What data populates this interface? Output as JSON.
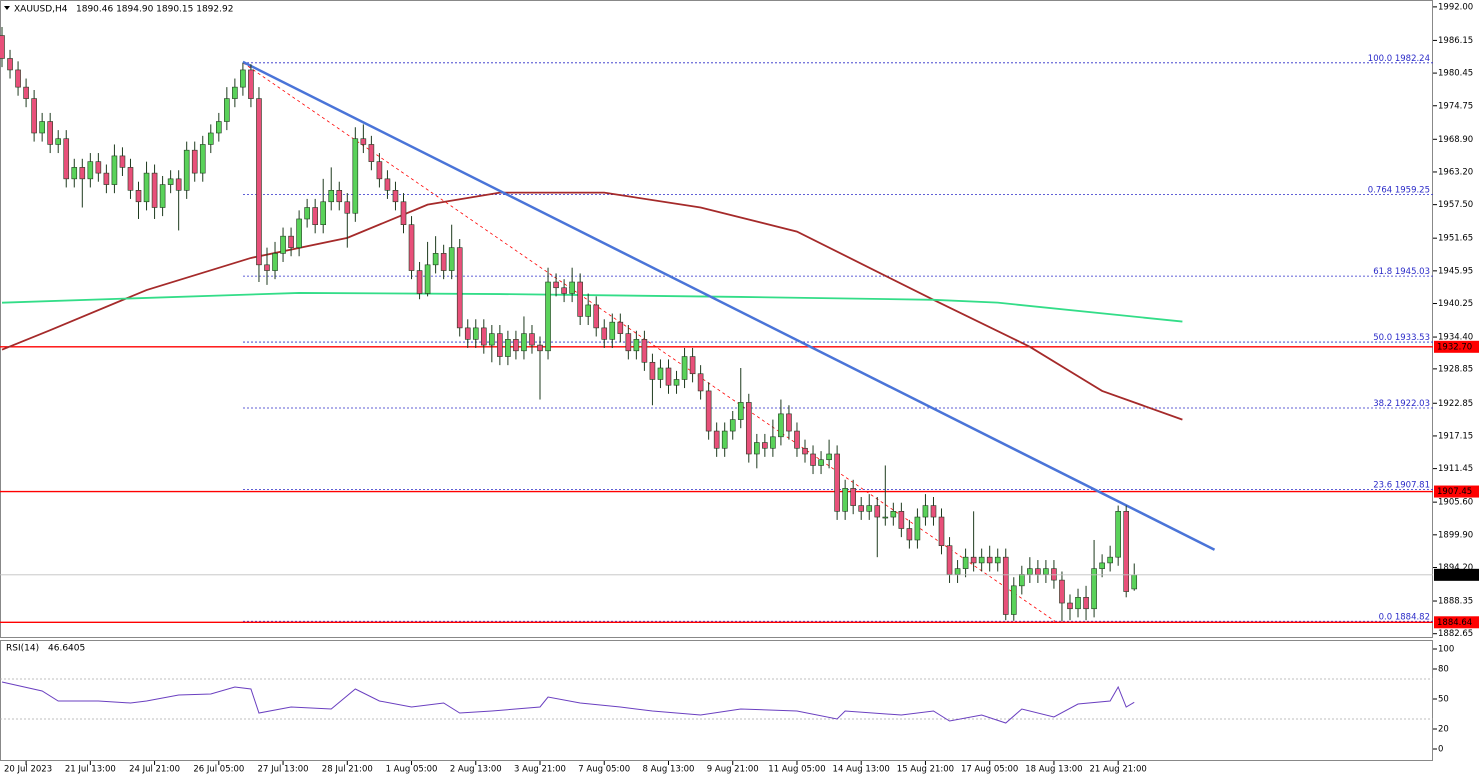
{
  "chart_data": {
    "type": "candlestick",
    "symbol": "XAUUSD,H4",
    "quote": "1890.46 1894.90 1890.15 1892.92",
    "categories": [
      null,
      null,
      null,
      "20 Jul 2023",
      null,
      null,
      null,
      null,
      null,
      null,
      null,
      "21 Jul 13:00",
      null,
      null,
      null,
      null,
      null,
      null,
      null,
      "24 Jul 21:00",
      null,
      null,
      null,
      null,
      null,
      null,
      null,
      "26 Jul 05:00",
      null,
      null,
      null,
      null,
      null,
      null,
      null,
      "27 Jul 13:00",
      null,
      null,
      null,
      null,
      null,
      null,
      null,
      "28 Jul 21:00",
      null,
      null,
      null,
      null,
      null,
      null,
      null,
      "1 Aug 05:00",
      null,
      null,
      null,
      null,
      null,
      null,
      null,
      "2 Aug 13:00",
      null,
      null,
      null,
      null,
      null,
      null,
      null,
      "3 Aug 21:00",
      null,
      null,
      null,
      null,
      null,
      null,
      null,
      "7 Aug 05:00",
      null,
      null,
      null,
      null,
      null,
      null,
      null,
      "8 Aug 13:00",
      null,
      null,
      null,
      null,
      null,
      null,
      null,
      "9 Aug 21:00",
      null,
      null,
      null,
      null,
      null,
      null,
      null,
      "11 Aug 05:00",
      null,
      null,
      null,
      null,
      null,
      null,
      null,
      "14 Aug 13:00",
      null,
      null,
      null,
      null,
      null,
      null,
      null,
      "15 Aug 21:00",
      null,
      null,
      null,
      null,
      null,
      null,
      null,
      "17 Aug 05:00",
      null,
      null,
      null,
      null,
      null,
      null,
      null,
      "18 Aug 13:00",
      null,
      null,
      null,
      null,
      null,
      null,
      null,
      "21 Aug 21:00",
      null,
      null
    ],
    "open": [
      1987,
      1983,
      1981,
      1978,
      1976,
      1970,
      1972,
      1968,
      1969,
      1962,
      1964,
      1962,
      1965,
      1963,
      1961,
      1966,
      1964,
      1960,
      1958,
      1963,
      1957,
      1961,
      1962,
      1960,
      1967,
      1963,
      1968,
      1970,
      1972,
      1976,
      1978,
      1981,
      1976,
      1947,
      1946,
      1949,
      1952,
      1950,
      1955,
      1957,
      1954,
      1958,
      1960,
      1958,
      1956,
      1969,
      1968,
      1965,
      1962,
      1960,
      1958,
      1954,
      1946,
      1942,
      1947,
      1949,
      1946,
      1950,
      1936,
      1934,
      1936,
      1933,
      1935,
      1931,
      1934,
      1932,
      1935,
      1933,
      1932,
      1944,
      1943,
      1942,
      1944,
      1938,
      1940,
      1936,
      1934,
      1937,
      1935,
      1932,
      1934,
      1930,
      1927,
      1929,
      1926,
      1927,
      1931,
      1928,
      1925,
      1918,
      1915,
      1918,
      1920,
      1923,
      1914,
      1916,
      1915,
      1917,
      1921,
      1918,
      1915,
      1914,
      1912,
      1913,
      1914,
      1904,
      1908,
      1905,
      1904,
      1905,
      1903,
      1903,
      1904,
      1901,
      1899,
      1903,
      1905,
      1903,
      1898,
      1893,
      1894,
      1896,
      1895,
      1896,
      1895,
      1896,
      1886,
      1891,
      1893,
      1894,
      1893,
      1894,
      1892,
      1888,
      1887,
      1889,
      1887,
      1894,
      1895,
      1896,
      1904,
      1890.46
    ],
    "high": [
      1988.5,
      1984.5,
      1982.5,
      1979.5,
      1977.5,
      1973.5,
      1973.5,
      1970.5,
      1970.5,
      1965.5,
      1965.5,
      1966.5,
      1966.5,
      1964.5,
      1968,
      1967.5,
      1965.5,
      1961.5,
      1965,
      1964.5,
      1962.5,
      1963.5,
      1963.5,
      1968.5,
      1968.5,
      1969.5,
      1971.5,
      1973.5,
      1978,
      1979.5,
      1982.24,
      1982,
      1978,
      1950,
      1951,
      1953.5,
      1953.5,
      1956.5,
      1958.5,
      1958.5,
      1962,
      1964,
      1961.5,
      1959.5,
      1971,
      1971.5,
      1969.5,
      1966.5,
      1963.5,
      1961.5,
      1959.5,
      1955.5,
      1947.5,
      1951,
      1952,
      1950.5,
      1954,
      1951.5,
      1937.5,
      1937.5,
      1937.5,
      1936.5,
      1936.5,
      1935.5,
      1935.5,
      1938,
      1936.5,
      1934.5,
      1946.5,
      1945.5,
      1944.5,
      1946.5,
      1945.5,
      1942,
      1941.5,
      1937.5,
      1938.5,
      1938.5,
      1936.5,
      1935.5,
      1935.5,
      1931.5,
      1930.5,
      1930.5,
      1928.5,
      1932.5,
      1932.5,
      1929.5,
      1926.5,
      1919.5,
      1919.5,
      1921.5,
      1929,
      1924.5,
      1917.5,
      1917.5,
      1920,
      1923.5,
      1922.5,
      1919.5,
      1916.5,
      1915.5,
      1914.5,
      1916.5,
      1915.5,
      1909.5,
      1909.5,
      1906.5,
      1907,
      1906.5,
      1912,
      1905.5,
      1905.5,
      1902.5,
      1904.5,
      1907,
      1906.5,
      1904.5,
      1899.5,
      1895.5,
      1897.5,
      1904,
      1897.5,
      1898,
      1897.5,
      1897.5,
      1892.5,
      1894.5,
      1896,
      1895.5,
      1895.5,
      1895.5,
      1893.5,
      1889.5,
      1890.5,
      1891,
      1899,
      1896.5,
      1898,
      1905,
      1905,
      1894.9
    ],
    "low": [
      1981.5,
      1979.5,
      1976.5,
      1974.5,
      1968.5,
      1968.5,
      1966.5,
      1966.5,
      1960.5,
      1960.5,
      1957,
      1960.5,
      1961.5,
      1959.5,
      1959.5,
      1962.5,
      1958.5,
      1955,
      1956.5,
      1955,
      1955.5,
      1959.5,
      1953,
      1958.5,
      1961.5,
      1961.5,
      1966.5,
      1968.5,
      1970.5,
      1974.5,
      1976.5,
      1974.5,
      1944,
      1943.5,
      1944.5,
      1947.5,
      1948.5,
      1948.5,
      1953.5,
      1952.5,
      1952.5,
      1956.5,
      1956.5,
      1950,
      1954.5,
      1966.5,
      1963.5,
      1960.5,
      1958.5,
      1956.5,
      1952.5,
      1944.5,
      1941,
      1941.5,
      1945.5,
      1944.5,
      1944.5,
      1934.5,
      1932.5,
      1932.5,
      1931.5,
      1930,
      1929.5,
      1929.5,
      1930.5,
      1930.5,
      1931.5,
      1923.5,
      1930.5,
      1941.5,
      1940.5,
      1940.5,
      1936.5,
      1936.5,
      1934.5,
      1932.5,
      1932.5,
      1933.5,
      1930.5,
      1930.5,
      1928.5,
      1922.5,
      1925.5,
      1924.5,
      1924.5,
      1925.5,
      1926.5,
      1923.5,
      1916.5,
      1913.5,
      1913.5,
      1916.5,
      1918.5,
      1912.5,
      1911.5,
      1913.5,
      1913.5,
      1915.5,
      1916.5,
      1913.5,
      1912.5,
      1910.5,
      1910.5,
      1911.5,
      1902.5,
      1902.5,
      1903.5,
      1902.5,
      1902.5,
      1896,
      1901.5,
      1901.5,
      1899.5,
      1897.5,
      1897.5,
      1901.5,
      1901.5,
      1896.5,
      1891.5,
      1891.5,
      1892.5,
      1893.5,
      1893.5,
      1893.5,
      1893.5,
      1885,
      1884.9,
      1889.5,
      1891.5,
      1891.5,
      1891.5,
      1890.5,
      1884.82,
      1885,
      1885.5,
      1885,
      1885.5,
      1892.5,
      1893.5,
      1894.5,
      1889,
      1890.15
    ],
    "close": [
      1983,
      1981,
      1978,
      1976,
      1970,
      1972,
      1968,
      1969,
      1962,
      1964,
      1962,
      1965,
      1963,
      1961,
      1966,
      1964,
      1960,
      1958,
      1963,
      1957,
      1961,
      1962,
      1960,
      1967,
      1963,
      1968,
      1970,
      1972,
      1976,
      1978,
      1981,
      1976,
      1947,
      1946,
      1949,
      1952,
      1950,
      1955,
      1957,
      1954,
      1958,
      1960,
      1958,
      1956,
      1969,
      1968,
      1965,
      1962,
      1960,
      1958,
      1954,
      1946,
      1942,
      1947,
      1949,
      1946,
      1950,
      1936,
      1934,
      1936,
      1933,
      1935,
      1931,
      1934,
      1932,
      1935,
      1933,
      1932,
      1944,
      1943,
      1942,
      1944,
      1938,
      1940,
      1936,
      1934,
      1937,
      1935,
      1932,
      1934,
      1930,
      1927,
      1929,
      1926,
      1927,
      1931,
      1928,
      1925,
      1918,
      1915,
      1918,
      1920,
      1923,
      1914,
      1916,
      1915,
      1917,
      1921,
      1918,
      1915,
      1914,
      1912,
      1913,
      1914,
      1904,
      1908,
      1905,
      1904,
      1905,
      1903,
      1903,
      1904,
      1901,
      1899,
      1903,
      1905,
      1903,
      1898,
      1893,
      1894,
      1896,
      1895,
      1896,
      1895,
      1896,
      1886,
      1891,
      1893,
      1894,
      1893,
      1894,
      1892,
      1888,
      1887,
      1889,
      1887,
      1894,
      1895,
      1896,
      1904,
      1890,
      1892.92
    ],
    "bull_color": "#5ad25a",
    "bear_color": "#e8507a",
    "wick_color": "#1e3a1e",
    "ylim": [
      1881.9,
      1993.2
    ],
    "yticks": [
      {
        "value": 1992,
        "label": "1992.00"
      },
      {
        "value": 1986.15,
        "label": "1986.15"
      },
      {
        "value": 1980.45,
        "label": "1980.45"
      },
      {
        "value": 1974.75,
        "label": "1974.75"
      },
      {
        "value": 1968.9,
        "label": "1968.90"
      },
      {
        "value": 1963.2,
        "label": "1963.20"
      },
      {
        "value": 1957.5,
        "label": "1957.50"
      },
      {
        "value": 1951.65,
        "label": "1951.65"
      },
      {
        "value": 1945.95,
        "label": "1945.95"
      },
      {
        "value": 1940.25,
        "label": "1940.25"
      },
      {
        "value": 1934.4,
        "label": "1934.40"
      },
      {
        "value": 1928.85,
        "label": "1928.85"
      },
      {
        "value": 1922.85,
        "label": "1922.85"
      },
      {
        "value": 1917.15,
        "label": "1917.15"
      },
      {
        "value": 1911.45,
        "label": "1911.45"
      },
      {
        "value": 1905.6,
        "label": "1905.60"
      },
      {
        "value": 1899.9,
        "label": "1899.90"
      },
      {
        "value": 1894.2,
        "label": "1894.20"
      },
      {
        "value": 1888.35,
        "label": "1888.35"
      },
      {
        "value": 1882.65,
        "label": "1882.65"
      }
    ],
    "lines": [
      {
        "color": "#a52a2a",
        "x": [
          0,
          6,
          18,
          31,
          43,
          53,
          62,
          75,
          87,
          99,
          116,
          128,
          137,
          147
        ],
        "values": [
          1932.2,
          1935.6,
          1942.6,
          1948.2,
          1951.7,
          1957.5,
          1959.6,
          1959.6,
          1957,
          1952.8,
          1940.9,
          1932.7,
          1925,
          1920
        ]
      },
      {
        "color": "#33dd88",
        "x": [
          0,
          37,
          62,
          92,
          116,
          124,
          147
        ],
        "values": [
          1940.4,
          1942.1,
          1941.9,
          1941.4,
          1940.9,
          1940.4,
          1937.1
        ]
      },
      {
        "color": "#4a74d8",
        "x": [
          30,
          151
        ],
        "values": [
          1982.4,
          1897.3
        ]
      }
    ],
    "levels": [
      {
        "value": 1932.7,
        "label": "1932.70"
      },
      {
        "value": 1907.45,
        "label": "1907.45"
      },
      {
        "value": 1884.64,
        "label": "1884.64"
      }
    ],
    "level_color": "#ff0000",
    "fib": [
      {
        "level": "100.0",
        "price": 1982.24
      },
      {
        "level": "0.764",
        "price": 1959.25
      },
      {
        "level": "61.8",
        "price": 1945.03
      },
      {
        "level": "50.0",
        "price": 1933.53
      },
      {
        "level": "38.2",
        "price": 1922.03
      },
      {
        "level": "23.6",
        "price": 1907.81
      },
      {
        "level": "0.0",
        "price": 1884.82
      }
    ],
    "fib_color": "#2b2bc8",
    "rsi": {
      "title": "RSI(14)",
      "color": "#6a3fc0",
      "ylim": [
        -11,
        109
      ],
      "yticks": [
        0,
        20,
        50,
        80,
        100
      ],
      "levels": [
        30,
        70
      ],
      "x": [
        0,
        5,
        7,
        12,
        16,
        18,
        22,
        26,
        29,
        31,
        32,
        36,
        41,
        44,
        47,
        51,
        55,
        57,
        61,
        67,
        68,
        72,
        77,
        81,
        87,
        92,
        99,
        104,
        105,
        112,
        116,
        118,
        122,
        125,
        127,
        131,
        134,
        138,
        139,
        140,
        141
      ],
      "values": [
        67,
        58,
        48,
        48,
        46,
        48,
        54,
        55,
        62,
        60,
        36,
        42,
        40,
        60,
        48,
        42,
        46,
        36,
        38,
        42,
        52,
        46,
        42,
        38,
        34,
        40,
        38,
        30,
        38,
        34,
        38,
        28,
        34,
        26,
        40,
        32,
        45,
        48,
        62,
        42,
        46.6405
      ]
    }
  }
}
